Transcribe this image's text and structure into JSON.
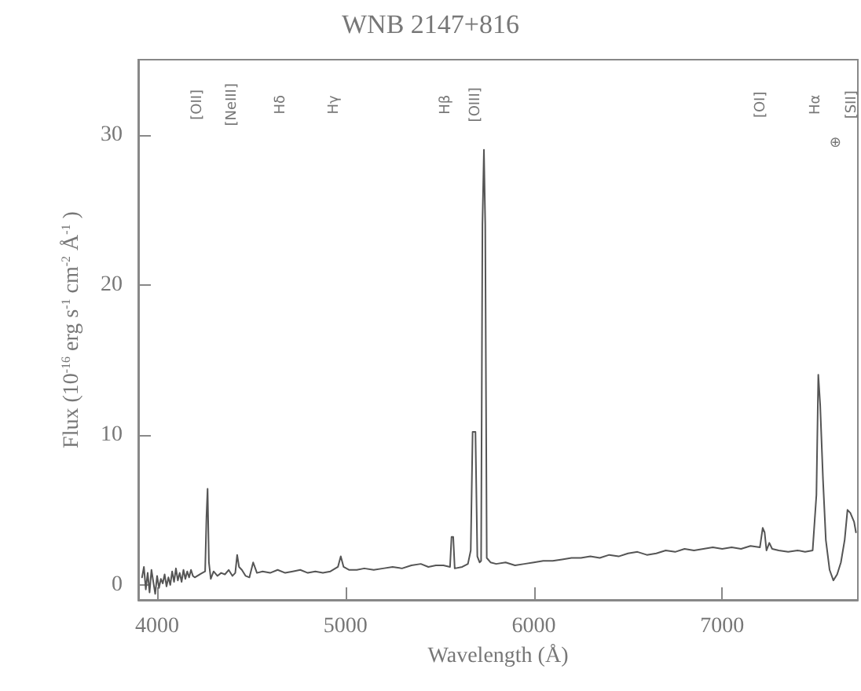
{
  "chart_data": {
    "type": "line",
    "title": "WNB 2147+816",
    "xlabel": "Wavelength (Å)",
    "ylabel": "Flux (10$^{-16}$ erg s$^{-1}$ cm$^{-2}$ Å$^{-1}$ )",
    "xlim": [
      3900,
      7720
    ],
    "xticks": [
      4000,
      5000,
      6000,
      7000
    ],
    "ylim": [
      -1,
      35
    ],
    "yticks": [
      0,
      10,
      20,
      30
    ],
    "grid": false,
    "marker": "none",
    "line_style": "solid",
    "series": [
      {
        "color": "#555555",
        "x": [
          3920,
          3930,
          3940,
          3950,
          3960,
          3970,
          3980,
          3990,
          4000,
          4010,
          4020,
          4030,
          4040,
          4050,
          4060,
          4070,
          4080,
          4090,
          4100,
          4110,
          4120,
          4130,
          4140,
          4150,
          4160,
          4170,
          4180,
          4190,
          4200,
          4240,
          4255,
          4262,
          4268,
          4275,
          4285,
          4300,
          4320,
          4340,
          4360,
          4380,
          4400,
          4415,
          4425,
          4435,
          4450,
          4470,
          4490,
          4510,
          4530,
          4560,
          4600,
          4640,
          4680,
          4720,
          4760,
          4800,
          4840,
          4880,
          4920,
          4960,
          4975,
          4990,
          5020,
          5060,
          5100,
          5150,
          5200,
          5250,
          5300,
          5350,
          5400,
          5440,
          5480,
          5520,
          5555,
          5563,
          5572,
          5580,
          5620,
          5650,
          5665,
          5675,
          5690,
          5700,
          5712,
          5720,
          5727,
          5735,
          5742,
          5750,
          5770,
          5800,
          5850,
          5900,
          5950,
          6000,
          6050,
          6100,
          6150,
          6200,
          6250,
          6300,
          6350,
          6400,
          6450,
          6500,
          6550,
          6600,
          6650,
          6700,
          6750,
          6800,
          6850,
          6900,
          6950,
          7000,
          7050,
          7100,
          7150,
          7200,
          7215,
          7225,
          7235,
          7250,
          7265,
          7300,
          7350,
          7400,
          7440,
          7480,
          7500,
          7510,
          7520,
          7535,
          7550,
          7570,
          7590,
          7610,
          7630,
          7650,
          7665,
          7680,
          7700,
          7710
        ],
        "values": [
          0.5,
          1.2,
          -0.3,
          0.8,
          -0.5,
          1.0,
          0.2,
          -0.6,
          0.6,
          -0.2,
          0.4,
          0.1,
          0.7,
          -0.1,
          0.5,
          0.0,
          0.9,
          0.2,
          1.1,
          0.3,
          0.8,
          0.2,
          1.0,
          0.4,
          0.9,
          0.5,
          1.0,
          0.6,
          0.5,
          0.8,
          0.9,
          4.5,
          6.4,
          1.5,
          0.4,
          0.9,
          0.6,
          0.8,
          0.7,
          1.0,
          0.6,
          0.8,
          2.0,
          1.2,
          1.0,
          0.6,
          0.5,
          1.5,
          0.8,
          0.9,
          0.8,
          1.0,
          0.8,
          0.9,
          1.0,
          0.8,
          0.9,
          0.8,
          0.9,
          1.2,
          1.9,
          1.2,
          1.0,
          1.0,
          1.1,
          1.0,
          1.1,
          1.2,
          1.1,
          1.3,
          1.4,
          1.2,
          1.3,
          1.3,
          1.2,
          3.2,
          3.2,
          1.1,
          1.2,
          1.4,
          2.3,
          10.2,
          10.2,
          1.9,
          1.5,
          1.6,
          24.0,
          29.0,
          24.0,
          1.8,
          1.5,
          1.4,
          1.5,
          1.3,
          1.4,
          1.5,
          1.6,
          1.6,
          1.7,
          1.8,
          1.8,
          1.9,
          1.8,
          2.0,
          1.9,
          2.1,
          2.2,
          2.0,
          2.1,
          2.3,
          2.2,
          2.4,
          2.3,
          2.4,
          2.5,
          2.4,
          2.5,
          2.4,
          2.6,
          2.5,
          3.8,
          3.5,
          2.3,
          2.8,
          2.4,
          2.3,
          2.2,
          2.3,
          2.2,
          2.3,
          6.0,
          14.0,
          12.0,
          7.0,
          3.0,
          1.0,
          0.3,
          0.7,
          1.5,
          3.0,
          5.0,
          4.8,
          4.2,
          3.5
        ]
      }
    ],
    "annotations": [
      "[OII]",
      "[NeIII]",
      "Hδ",
      "Hγ",
      "Hβ",
      "[OIII]",
      "[OI]",
      "Hα",
      "⊕",
      "[SII]"
    ]
  }
}
